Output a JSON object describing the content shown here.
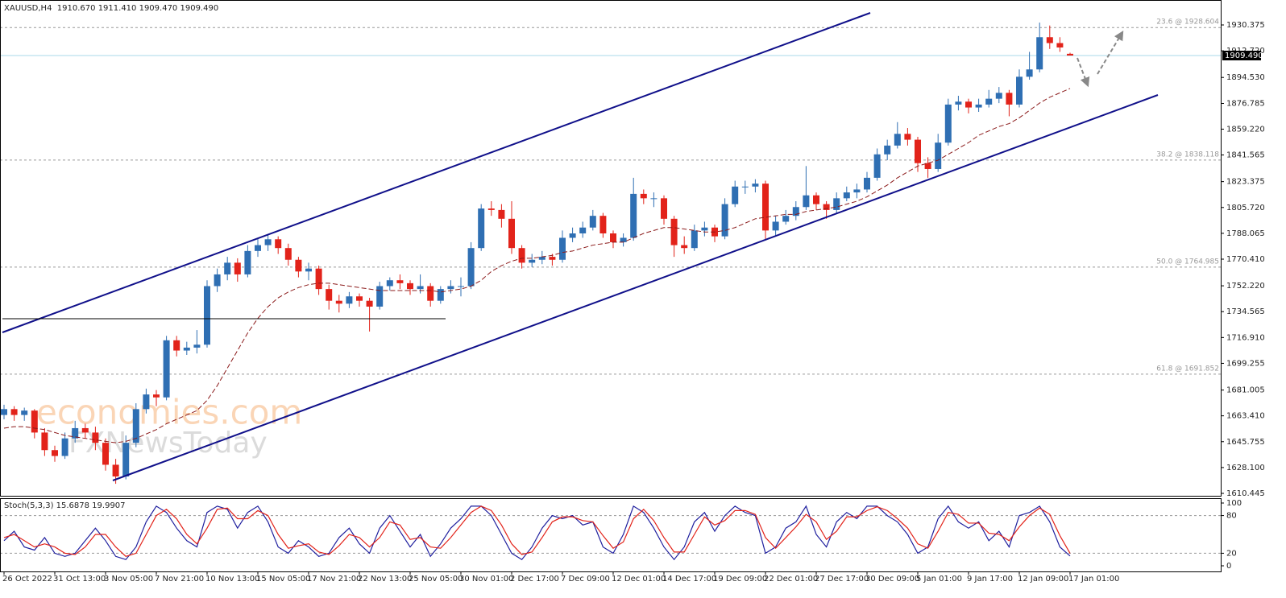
{
  "chart_data": {
    "type": "candlestick",
    "header": "XAUUSD,H4  1910.670 1911.410 1909.470 1909.490",
    "watermarks": [
      "economies.com",
      "FXNewsToday"
    ],
    "categories": [
      "26 Oct 2022",
      null,
      null,
      null,
      null,
      "31 Oct 13:00",
      null,
      null,
      null,
      null,
      "3 Nov 05:00",
      null,
      null,
      null,
      null,
      "7 Nov 21:00",
      null,
      null,
      null,
      null,
      "10 Nov 13:00",
      null,
      null,
      null,
      null,
      "15 Nov 05:00",
      null,
      null,
      null,
      null,
      "17 Nov 21:00",
      null,
      null,
      null,
      null,
      "22 Nov 13:00",
      null,
      null,
      null,
      null,
      "25 Nov 05:00",
      null,
      null,
      null,
      null,
      "30 Nov 01:00",
      null,
      null,
      null,
      null,
      "2 Dec 17:00",
      null,
      null,
      null,
      null,
      "7 Dec 09:00",
      null,
      null,
      null,
      null,
      "12 Dec 01:00",
      null,
      null,
      null,
      null,
      "14 Dec 17:00",
      null,
      null,
      null,
      null,
      "19 Dec 09:00",
      null,
      null,
      null,
      null,
      "22 Dec 01:00",
      null,
      null,
      null,
      null,
      "27 Dec 17:00",
      null,
      null,
      null,
      null,
      "30 Dec 09:00",
      null,
      null,
      null,
      null,
      "5 Jan 01:00",
      null,
      null,
      null,
      null,
      "9 Jan 17:00",
      null,
      null,
      null,
      null,
      "12 Jan 09:00",
      null,
      null,
      null,
      null,
      "17 Jan 01:00"
    ],
    "series": [
      {
        "name": "XAUUSD,H4",
        "up_color": "#2f6fb3",
        "down_color": "#e2231a",
        "open": [
          1664,
          1668,
          1664,
          1667,
          1652,
          1640,
          1636,
          1648,
          1655,
          1652,
          1645,
          1630,
          1622,
          1645,
          1668,
          1678,
          1676,
          1715,
          1708,
          1710,
          1712,
          1752,
          1760,
          1768,
          1760,
          1776,
          1780,
          1784,
          1778,
          1770,
          1762,
          1764,
          1750,
          1742,
          1740,
          1745,
          1742,
          1738,
          1752,
          1756,
          1754,
          1750,
          1752,
          1742,
          1750,
          1752,
          1752,
          1778,
          1805,
          1804,
          1798,
          1778,
          1768,
          1770,
          1772,
          1770,
          1785,
          1788,
          1792,
          1800,
          1788,
          1782,
          1785,
          1815,
          1812,
          1812,
          1798,
          1780,
          1778,
          1790,
          1792,
          1786,
          1808,
          1820,
          1820,
          1822,
          1790,
          1796,
          1800,
          1806,
          1814,
          1808,
          1804,
          1812,
          1816,
          1818,
          1826,
          1842,
          1848,
          1856,
          1852,
          1836,
          1832,
          1850,
          1876,
          1878,
          1874,
          1876,
          1880,
          1884,
          1876,
          1895,
          1900,
          1922,
          1918,
          1910.67
        ],
        "high": [
          1671,
          1670,
          1669,
          1668,
          1655,
          1643,
          1652,
          1660,
          1658,
          1656,
          1648,
          1634,
          1650,
          1672,
          1682,
          1681,
          1718,
          1718,
          1714,
          1722,
          1756,
          1764,
          1772,
          1771,
          1780,
          1785,
          1787,
          1786,
          1781,
          1772,
          1768,
          1766,
          1753,
          1746,
          1748,
          1747,
          1744,
          1755,
          1758,
          1760,
          1756,
          1760,
          1754,
          1752,
          1756,
          1758,
          1782,
          1808,
          1810,
          1808,
          1810,
          1780,
          1774,
          1776,
          1774,
          1790,
          1792,
          1796,
          1804,
          1802,
          1790,
          1788,
          1826,
          1818,
          1816,
          1814,
          1800,
          1786,
          1794,
          1796,
          1794,
          1812,
          1824,
          1824,
          1825,
          1824,
          1800,
          1804,
          1810,
          1834,
          1816,
          1810,
          1816,
          1820,
          1822,
          1830,
          1846,
          1852,
          1864,
          1860,
          1854,
          1840,
          1856,
          1880,
          1882,
          1880,
          1880,
          1886,
          1888,
          1886,
          1900,
          1912,
          1932,
          1930,
          1922,
          1911.41
        ],
        "low": [
          1661,
          1660,
          1660,
          1648,
          1636,
          1632,
          1634,
          1645,
          1648,
          1640,
          1626,
          1617,
          1620,
          1642,
          1665,
          1670,
          1674,
          1704,
          1705,
          1706,
          1710,
          1748,
          1756,
          1755,
          1758,
          1772,
          1776,
          1774,
          1766,
          1758,
          1756,
          1746,
          1736,
          1734,
          1737,
          1738,
          1721,
          1736,
          1749,
          1750,
          1746,
          1747,
          1738,
          1740,
          1747,
          1745,
          1750,
          1776,
          1800,
          1792,
          1774,
          1764,
          1765,
          1767,
          1766,
          1768,
          1782,
          1785,
          1790,
          1785,
          1778,
          1779,
          1783,
          1808,
          1806,
          1794,
          1772,
          1774,
          1776,
          1786,
          1782,
          1784,
          1806,
          1815,
          1816,
          1784,
          1786,
          1794,
          1797,
          1804,
          1804,
          1798,
          1802,
          1810,
          1812,
          1816,
          1824,
          1838,
          1846,
          1848,
          1830,
          1826,
          1830,
          1848,
          1872,
          1870,
          1871,
          1874,
          1877,
          1868,
          1874,
          1893,
          1898,
          1914,
          1912,
          1909.47
        ],
        "close": [
          1668,
          1664,
          1667,
          1652,
          1640,
          1636,
          1648,
          1655,
          1652,
          1645,
          1630,
          1622,
          1645,
          1668,
          1678,
          1676,
          1715,
          1708,
          1710,
          1712,
          1752,
          1760,
          1768,
          1760,
          1776,
          1780,
          1784,
          1778,
          1770,
          1762,
          1764,
          1750,
          1742,
          1740,
          1745,
          1742,
          1738,
          1752,
          1756,
          1754,
          1750,
          1752,
          1742,
          1750,
          1752,
          1752,
          1778,
          1805,
          1804,
          1798,
          1778,
          1768,
          1770,
          1772,
          1770,
          1785,
          1788,
          1792,
          1800,
          1788,
          1782,
          1785,
          1815,
          1812,
          1812,
          1798,
          1780,
          1778,
          1790,
          1792,
          1786,
          1808,
          1820,
          1820,
          1822,
          1790,
          1796,
          1800,
          1806,
          1814,
          1808,
          1804,
          1812,
          1816,
          1818,
          1826,
          1842,
          1848,
          1856,
          1852,
          1836,
          1832,
          1850,
          1876,
          1878,
          1874,
          1876,
          1880,
          1884,
          1876,
          1895,
          1900,
          1922,
          1918,
          1915,
          1909.49
        ]
      }
    ],
    "ma": {
      "color": "#8b1a1a",
      "values": [
        1655,
        1656,
        1656,
        1655,
        1654,
        1652,
        1650,
        1649,
        1648,
        1647,
        1646,
        1645,
        1646,
        1648,
        1651,
        1654,
        1658,
        1661,
        1664,
        1667,
        1674,
        1684,
        1696,
        1708,
        1720,
        1730,
        1738,
        1744,
        1748,
        1751,
        1753,
        1754,
        1754,
        1753,
        1752,
        1751,
        1750,
        1749,
        1749,
        1749,
        1749,
        1749,
        1749,
        1748,
        1749,
        1750,
        1752,
        1756,
        1762,
        1766,
        1769,
        1771,
        1771,
        1772,
        1773,
        1775,
        1776,
        1778,
        1780,
        1781,
        1782,
        1782,
        1785,
        1788,
        1790,
        1792,
        1792,
        1791,
        1790,
        1789,
        1789,
        1790,
        1792,
        1795,
        1798,
        1799,
        1800,
        1801,
        1801,
        1803,
        1804,
        1805,
        1806,
        1808,
        1810,
        1813,
        1817,
        1821,
        1826,
        1830,
        1834,
        1836,
        1838,
        1842,
        1846,
        1850,
        1855,
        1858,
        1861,
        1863,
        1867,
        1872,
        1877,
        1881,
        1884,
        1887
      ]
    },
    "ylim": [
      1608.25,
      1947.42
    ],
    "yticks": [
      1930.375,
      {
        "value": 1912.72,
        "label": "1912.720"
      },
      {
        "value": 1894.53,
        "label": "1894.530"
      },
      1876.785,
      {
        "value": 1859.22,
        "label": "1859.220"
      },
      1841.565,
      1823.375,
      {
        "value": 1805.72,
        "label": "1805.720"
      },
      1788.065,
      {
        "value": 1770.41,
        "label": "1770.410"
      },
      {
        "value": 1752.22,
        "label": "1752.220"
      },
      1734.565,
      {
        "value": 1716.91,
        "label": "1716.910"
      },
      1699.255,
      1681.005,
      {
        "value": 1663.41,
        "label": "1663.410"
      },
      1645.755,
      {
        "value": 1628.1,
        "label": "1628.100"
      },
      1610.445
    ],
    "current_price": {
      "value": 1909.49,
      "label": "1909.490",
      "color": "#a8d8e8"
    },
    "fib_levels": [
      {
        "value": 1928.604,
        "label": "23.6 @ 1928.604"
      },
      {
        "value": 1838.118,
        "label": "38.2 @ 1838.118"
      },
      {
        "value": 1764.985,
        "label": "50.0 @ 1764.985"
      },
      {
        "value": 1691.852,
        "label": "61.8 @ 1691.852"
      }
    ],
    "stoch": {
      "title": "Stoch(5,3,3) 15.6878 19.9907",
      "ylim": [
        0,
        100
      ],
      "yticks": [
        0,
        20,
        80,
        100
      ],
      "levels": [
        20,
        80
      ],
      "series": [
        {
          "color": "#1f1f9e",
          "values": [
            40,
            55,
            30,
            25,
            45,
            20,
            15,
            20,
            40,
            60,
            40,
            15,
            10,
            30,
            70,
            95,
            85,
            60,
            40,
            30,
            85,
            95,
            90,
            60,
            85,
            95,
            70,
            30,
            20,
            40,
            30,
            15,
            20,
            45,
            60,
            35,
            20,
            60,
            80,
            55,
            30,
            50,
            15,
            35,
            60,
            75,
            95,
            95,
            80,
            50,
            20,
            10,
            30,
            60,
            80,
            75,
            80,
            65,
            70,
            30,
            20,
            50,
            95,
            85,
            60,
            30,
            10,
            30,
            70,
            85,
            55,
            80,
            95,
            85,
            80,
            20,
            30,
            60,
            70,
            95,
            50,
            30,
            70,
            85,
            75,
            95,
            95,
            80,
            70,
            50,
            20,
            30,
            75,
            95,
            70,
            60,
            70,
            40,
            55,
            30,
            80,
            85,
            95,
            70,
            30,
            15.6878
          ]
        },
        {
          "color": "#e2231a",
          "values": [
            45,
            50,
            40,
            30,
            35,
            30,
            20,
            18,
            30,
            50,
            50,
            30,
            15,
            20,
            50,
            80,
            90,
            75,
            50,
            35,
            60,
            90,
            92,
            75,
            75,
            88,
            80,
            50,
            28,
            32,
            35,
            22,
            18,
            32,
            50,
            45,
            30,
            45,
            70,
            65,
            42,
            45,
            30,
            28,
            45,
            65,
            85,
            95,
            88,
            65,
            35,
            18,
            22,
            45,
            70,
            78,
            78,
            72,
            70,
            48,
            28,
            38,
            75,
            90,
            72,
            45,
            22,
            22,
            50,
            78,
            65,
            72,
            88,
            88,
            82,
            45,
            28,
            45,
            62,
            82,
            70,
            42,
            55,
            78,
            78,
            88,
            94,
            88,
            75,
            60,
            35,
            28,
            55,
            85,
            82,
            68,
            68,
            52,
            50,
            40,
            62,
            80,
            92,
            82,
            48,
            19.9907
          ]
        }
      ]
    }
  }
}
